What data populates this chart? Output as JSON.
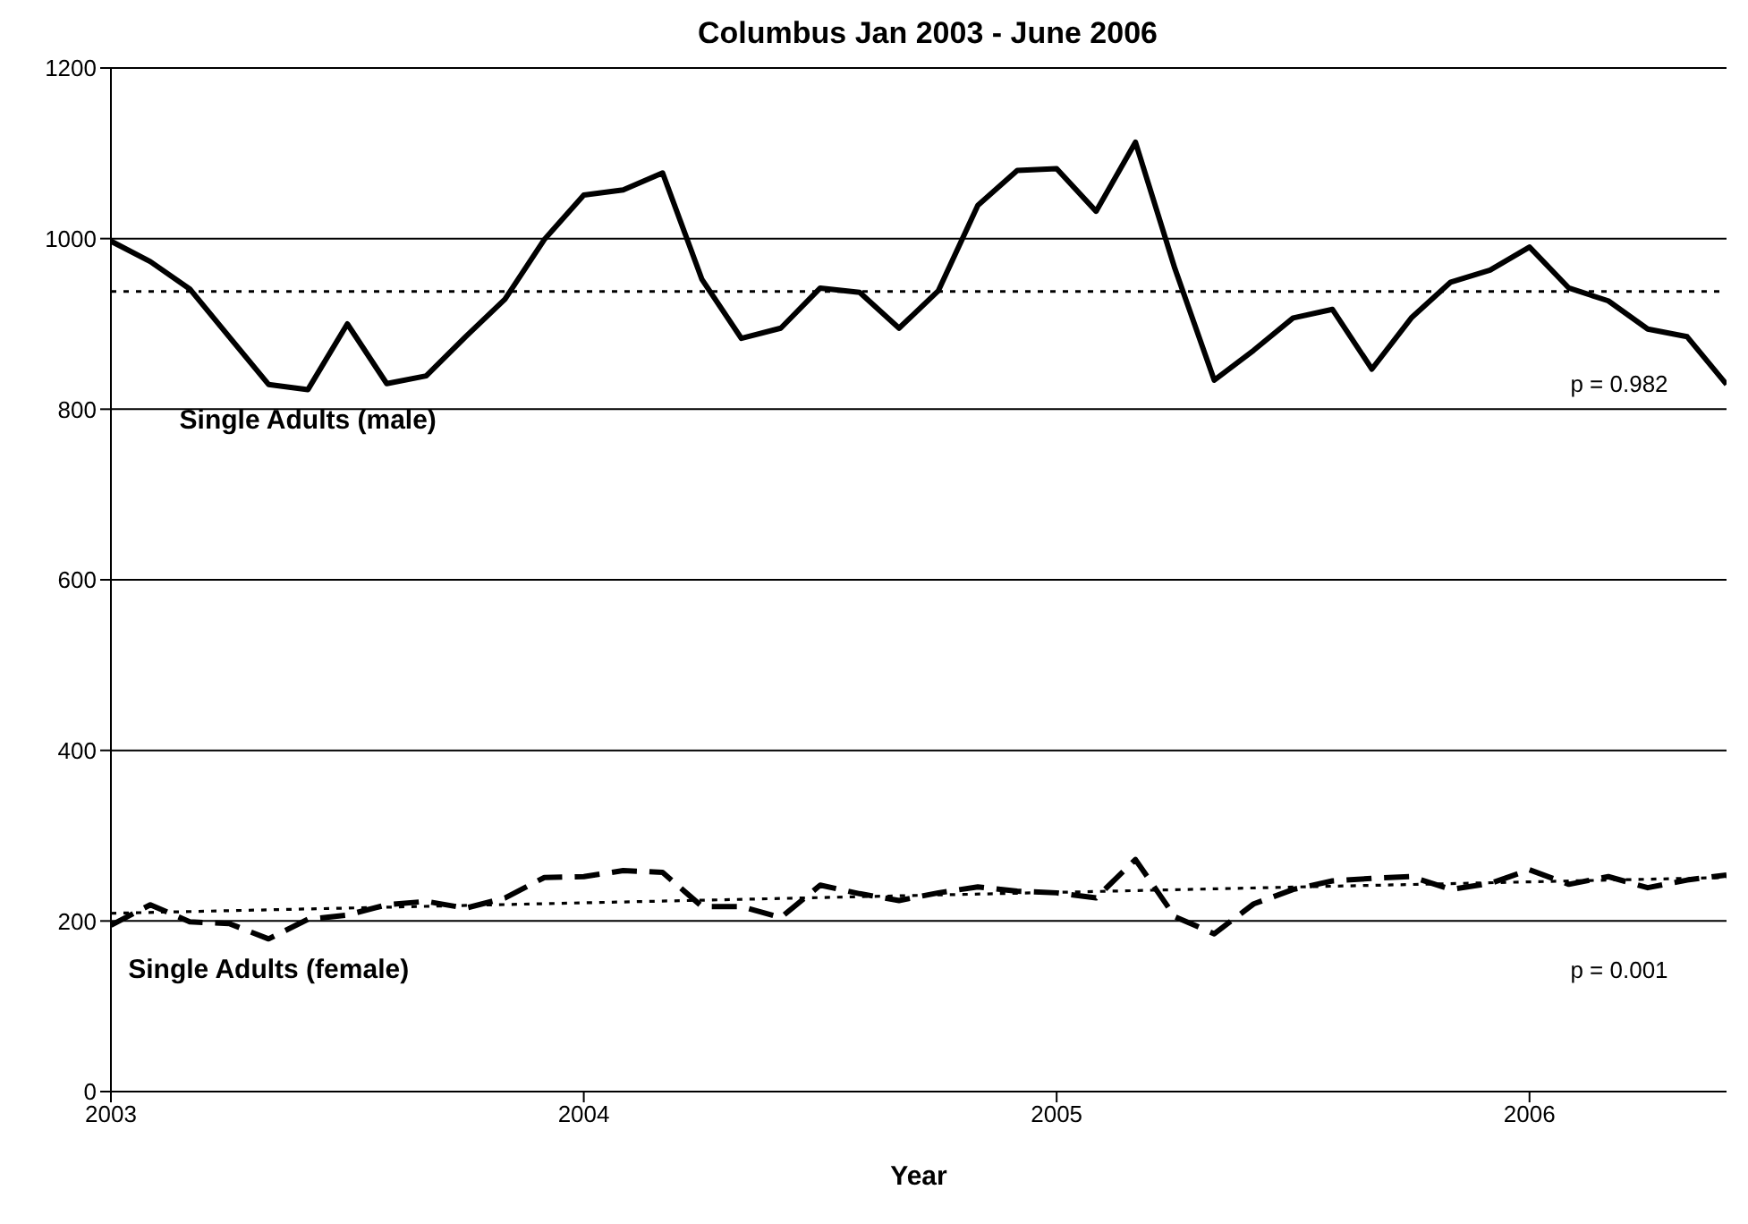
{
  "chart_data": {
    "type": "line",
    "title": "Columbus Jan 2003 - June 2006",
    "xlabel": "Year",
    "x": [
      "2003-01",
      "2003-02",
      "2003-03",
      "2003-04",
      "2003-05",
      "2003-06",
      "2003-07",
      "2003-08",
      "2003-09",
      "2003-10",
      "2003-11",
      "2003-12",
      "2004-01",
      "2004-02",
      "2004-03",
      "2004-04",
      "2004-05",
      "2004-06",
      "2004-07",
      "2004-08",
      "2004-09",
      "2004-10",
      "2004-11",
      "2004-12",
      "2005-01",
      "2005-02",
      "2005-03",
      "2005-04",
      "2005-05",
      "2005-06",
      "2005-07",
      "2005-08",
      "2005-09",
      "2005-10",
      "2005-11",
      "2005-12",
      "2006-01",
      "2006-02",
      "2006-03",
      "2006-04",
      "2006-05",
      "2006-06"
    ],
    "series": [
      {
        "name": "Single Adults (male)",
        "color": "#000000",
        "line_style": "solid",
        "values": [
          997,
          973,
          941,
          885,
          829,
          823,
          900,
          830,
          839,
          885,
          929,
          999,
          1051,
          1057,
          1077,
          952,
          883,
          895,
          942,
          937,
          895,
          939,
          1039,
          1080,
          1082,
          1032,
          1113,
          965,
          834,
          869,
          907,
          917,
          847,
          907,
          949,
          963,
          990,
          942,
          927,
          894,
          885,
          829
        ]
      },
      {
        "name": "Single Adults (female)",
        "color": "#000000",
        "line_style": "dashed",
        "values": [
          195,
          219,
          199,
          197,
          179,
          202,
          207,
          219,
          223,
          215,
          227,
          251,
          252,
          259,
          257,
          217,
          217,
          204,
          242,
          232,
          224,
          233,
          240,
          235,
          233,
          227,
          272,
          205,
          185,
          220,
          237,
          247,
          250,
          252,
          237,
          244,
          260,
          243,
          252,
          239,
          248,
          254
        ]
      },
      {
        "type": "line",
        "color": "#000000",
        "line_style": "dotted",
        "x": [
          "2003-01",
          "2006-06"
        ],
        "values": [
          938,
          938
        ]
      },
      {
        "type": "line",
        "color": "#000000",
        "line_style": "dotted",
        "x": [
          "2003-01",
          "2006-06"
        ],
        "values": [
          209,
          251
        ]
      }
    ],
    "annotations": [
      "p = 0.982",
      "p = 0.001"
    ],
    "xlim": [
      "2003-01",
      "2006-06"
    ],
    "xticks": [
      "2003",
      "2004",
      "2005",
      "2006"
    ],
    "ylim": [
      0,
      1200
    ],
    "yticks": [
      0,
      200,
      400,
      600,
      800,
      1000,
      1200
    ],
    "grid": "y",
    "legend": false,
    "marker": "none"
  }
}
